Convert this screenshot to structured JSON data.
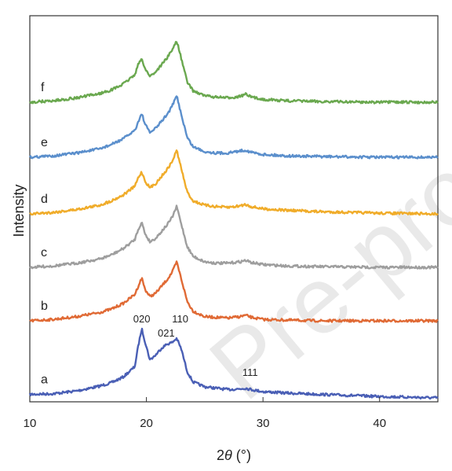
{
  "watermark": "Pre-proof",
  "chart_data": {
    "type": "line",
    "xlabel_prefix": "2",
    "xlabel_theta": "θ",
    "xlabel_unit": " (°)",
    "ylabel": "Intensity",
    "xlim": [
      10,
      45
    ],
    "xticks": [
      "10",
      "20",
      "30",
      "40"
    ],
    "xtick_values": [
      10,
      20,
      30,
      40
    ],
    "grid": false,
    "legend": "labels next to traces",
    "x": [
      10,
      12,
      14,
      16,
      17,
      18,
      19,
      19.3,
      19.6,
      19.9,
      20.3,
      20.8,
      21.3,
      21.8,
      22.2,
      22.6,
      23.0,
      23.5,
      24,
      25,
      26,
      27,
      28,
      28.5,
      29,
      30,
      32,
      35,
      40,
      45
    ],
    "series": [
      {
        "name": "a",
        "color": "#4a5fb5",
        "values": [
          0.05,
          0.06,
          0.1,
          0.17,
          0.22,
          0.3,
          0.45,
          0.75,
          1.0,
          0.8,
          0.55,
          0.62,
          0.72,
          0.78,
          0.8,
          0.86,
          0.7,
          0.38,
          0.23,
          0.16,
          0.14,
          0.12,
          0.13,
          0.14,
          0.12,
          0.09,
          0.07,
          0.05,
          0.02,
          0.0
        ]
      },
      {
        "name": "b",
        "color": "#e06a35",
        "values": [
          0.0,
          0.02,
          0.06,
          0.12,
          0.17,
          0.25,
          0.38,
          0.5,
          0.62,
          0.45,
          0.35,
          0.4,
          0.5,
          0.6,
          0.7,
          0.85,
          0.6,
          0.28,
          0.14,
          0.06,
          0.05,
          0.04,
          0.06,
          0.08,
          0.05,
          0.02,
          0.01,
          0.0,
          0.0,
          0.0
        ]
      },
      {
        "name": "c",
        "color": "#9e9e9e",
        "values": [
          0.0,
          0.02,
          0.06,
          0.12,
          0.18,
          0.27,
          0.4,
          0.55,
          0.65,
          0.48,
          0.37,
          0.42,
          0.52,
          0.62,
          0.72,
          0.88,
          0.62,
          0.3,
          0.16,
          0.08,
          0.06,
          0.06,
          0.08,
          0.1,
          0.07,
          0.04,
          0.02,
          0.01,
          0.0,
          0.0
        ]
      },
      {
        "name": "d",
        "color": "#f0ac2a",
        "values": [
          0.0,
          0.02,
          0.06,
          0.12,
          0.18,
          0.26,
          0.38,
          0.5,
          0.58,
          0.45,
          0.36,
          0.42,
          0.52,
          0.62,
          0.72,
          0.88,
          0.62,
          0.3,
          0.18,
          0.12,
          0.1,
          0.09,
          0.11,
          0.13,
          0.1,
          0.07,
          0.05,
          0.03,
          0.01,
          0.0
        ]
      },
      {
        "name": "e",
        "color": "#5b8fcc",
        "values": [
          0.0,
          0.02,
          0.06,
          0.12,
          0.18,
          0.26,
          0.38,
          0.5,
          0.62,
          0.46,
          0.35,
          0.41,
          0.51,
          0.61,
          0.72,
          0.87,
          0.6,
          0.28,
          0.15,
          0.08,
          0.06,
          0.06,
          0.09,
          0.1,
          0.07,
          0.04,
          0.02,
          0.01,
          0.0,
          0.0
        ]
      },
      {
        "name": "f",
        "color": "#6aa84f",
        "values": [
          0.0,
          0.02,
          0.06,
          0.12,
          0.17,
          0.25,
          0.38,
          0.52,
          0.6,
          0.46,
          0.36,
          0.42,
          0.52,
          0.62,
          0.72,
          0.85,
          0.6,
          0.28,
          0.16,
          0.09,
          0.07,
          0.06,
          0.08,
          0.11,
          0.07,
          0.04,
          0.02,
          0.01,
          0.0,
          0.0
        ]
      }
    ],
    "annotations": [
      {
        "text": "020",
        "x": 19.6
      },
      {
        "text": "021",
        "x": 21.7
      },
      {
        "text": "110",
        "x": 22.9
      },
      {
        "text": "111",
        "x": 28.9
      }
    ]
  }
}
